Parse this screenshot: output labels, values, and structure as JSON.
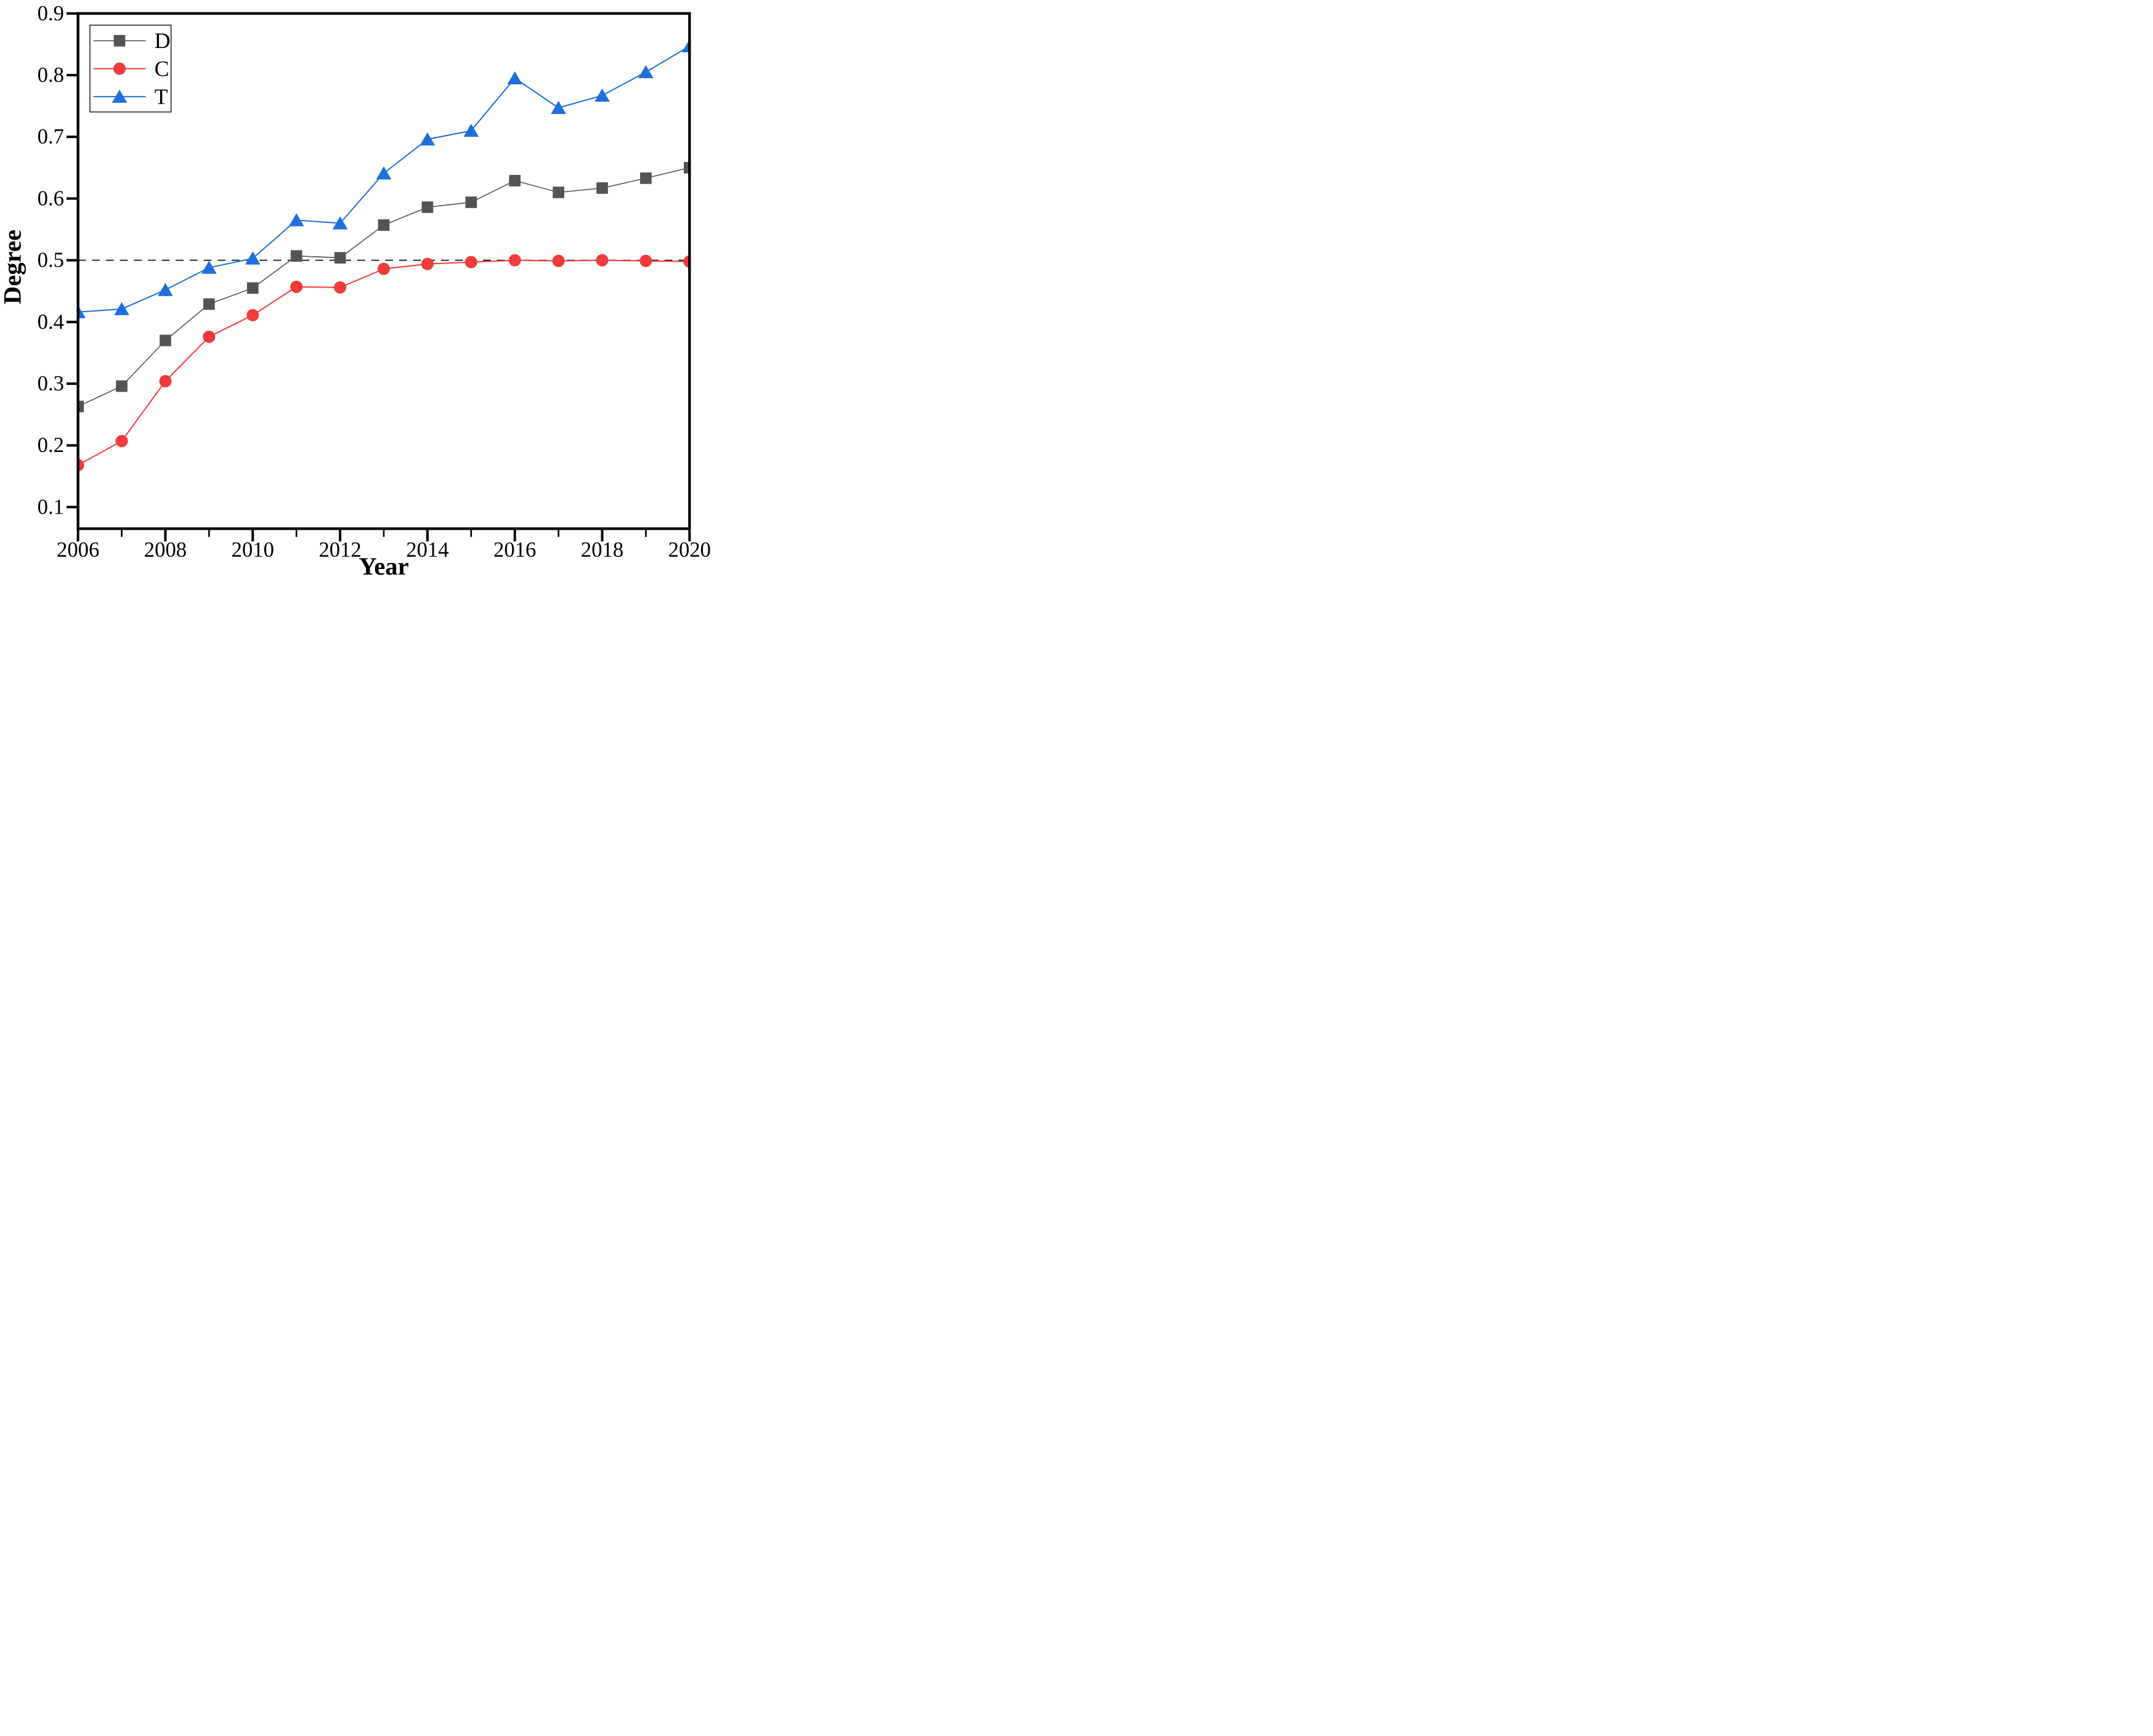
{
  "chart_data": {
    "type": "line",
    "title": "",
    "xlabel": "Year",
    "ylabel": "Degree",
    "x": [
      2006,
      2007,
      2008,
      2009,
      2010,
      2011,
      2012,
      2013,
      2014,
      2015,
      2016,
      2017,
      2018,
      2019,
      2020
    ],
    "series": [
      {
        "name": "D",
        "marker": "square",
        "color": "#545454",
        "line_color": "#5a5a5a",
        "values": [
          0.263,
          0.296,
          0.37,
          0.429,
          0.455,
          0.507,
          0.504,
          0.557,
          0.586,
          0.594,
          0.629,
          0.61,
          0.617,
          0.633,
          0.65
        ]
      },
      {
        "name": "C",
        "marker": "circle",
        "color": "#EF3B3C",
        "line_color": "#EF3B3C",
        "values": [
          0.168,
          0.207,
          0.304,
          0.376,
          0.411,
          0.457,
          0.456,
          0.486,
          0.494,
          0.497,
          0.5,
          0.499,
          0.5,
          0.499,
          0.498
        ]
      },
      {
        "name": "T",
        "marker": "triangle-up",
        "color": "#1E6FD9",
        "line_color": "#1E6FD9",
        "values": [
          0.416,
          0.421,
          0.452,
          0.488,
          0.503,
          0.565,
          0.56,
          0.641,
          0.696,
          0.71,
          0.795,
          0.747,
          0.767,
          0.805,
          0.847
        ]
      }
    ],
    "xlim": [
      2006,
      2020
    ],
    "ylim": [
      0.065,
      0.9
    ],
    "y_ticks": [
      0.9,
      0.8,
      0.7,
      0.6,
      0.5,
      0.4,
      0.3,
      0.2,
      0.1
    ],
    "y_tick_labels": [
      "0.9",
      "0.8",
      "0.7",
      "0.6",
      "0.5",
      "0.4",
      "0.3",
      "0.2",
      "0.1"
    ],
    "x_ticks_major": [
      2006,
      2008,
      2010,
      2012,
      2014,
      2016,
      2018,
      2020
    ],
    "x_tick_labels": [
      "2006",
      "2008",
      "2010",
      "2012",
      "2014",
      "2016",
      "2018",
      "2020"
    ],
    "x_ticks_minor": [
      2007,
      2009,
      2011,
      2013,
      2015,
      2017,
      2019
    ],
    "reference_line": {
      "y": 0.5,
      "style": "dashed",
      "color": "#111111"
    },
    "legend": {
      "position": "top-left",
      "entries": [
        "D",
        "C",
        "T"
      ]
    },
    "grid": "off"
  }
}
